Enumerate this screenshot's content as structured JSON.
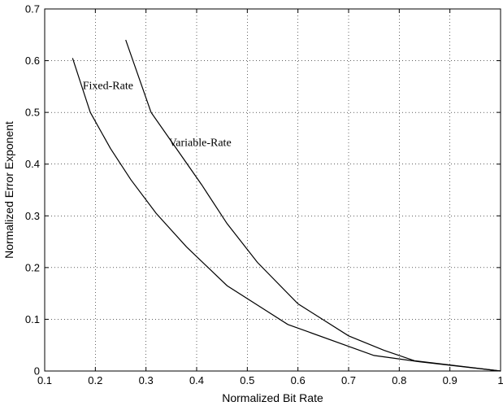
{
  "chart_data": {
    "type": "line",
    "xlabel": "Normalized Bit Rate",
    "ylabel": "Normalized Error Exponent",
    "xlim": [
      0.1,
      1
    ],
    "ylim": [
      0,
      0.7
    ],
    "xticks": [
      "0.1",
      "0.2",
      "0.3",
      "0.4",
      "0.5",
      "0.6",
      "0.7",
      "0.8",
      "0.9",
      "1"
    ],
    "yticks": [
      "0",
      "0.1",
      "0.2",
      "0.3",
      "0.4",
      "0.5",
      "0.6",
      "0.7"
    ],
    "grid": true,
    "series": [
      {
        "x": [
          0.155,
          0.19,
          0.23,
          0.27,
          0.32,
          0.38,
          0.46,
          0.58,
          0.75,
          0.84,
          1.0
        ],
        "y": [
          0.605,
          0.5,
          0.43,
          0.37,
          0.305,
          0.24,
          0.165,
          0.09,
          0.03,
          0.018,
          0.0
        ]
      },
      {
        "x": [
          0.26,
          0.31,
          0.36,
          0.41,
          0.46,
          0.52,
          0.6,
          0.7,
          0.77,
          0.83,
          1.0
        ],
        "y": [
          0.64,
          0.5,
          0.43,
          0.36,
          0.285,
          0.21,
          0.13,
          0.068,
          0.04,
          0.02,
          0.0
        ]
      }
    ],
    "annotations": [
      {
        "text": "Fixed-Rate",
        "x": 0.175,
        "y": 0.545
      },
      {
        "text": "Variable-Rate",
        "x": 0.345,
        "y": 0.435
      }
    ]
  }
}
